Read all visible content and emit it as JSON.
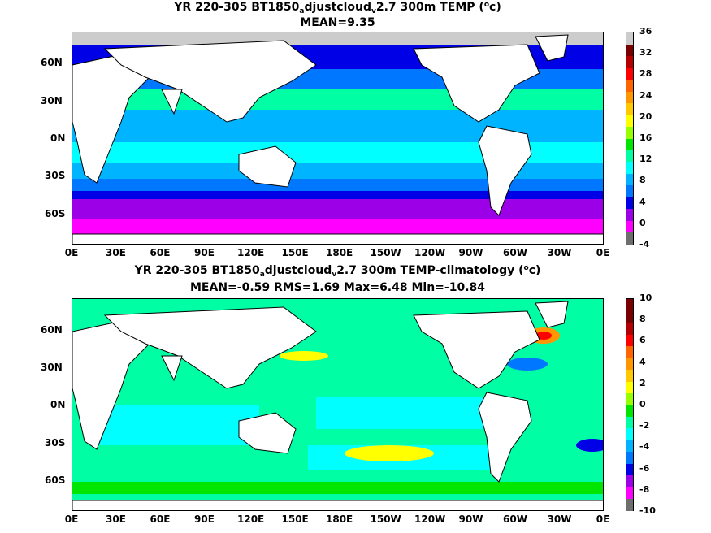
{
  "panels": [
    {
      "title_a": "YR 220-305 BT1850",
      "title_sub": "a",
      "title_b": "djustcloud",
      "title_sub2": "v",
      "title_c": "2.7 300m TEMP (",
      "title_sup": "o",
      "title_d": "c)",
      "stats": "MEAN=9.35",
      "colorbar_ticks": [
        "36",
        "32",
        "28",
        "24",
        "20",
        "16",
        "12",
        "8",
        "4",
        "0",
        "-4"
      ],
      "colorbar_colors": [
        "#6e6e6e",
        "#ff00ff",
        "#9c00e6",
        "#0000e6",
        "#0077ff",
        "#00b4ff",
        "#00ffff",
        "#00ffa5",
        "#00e600",
        "#96ff00",
        "#ffff00",
        "#ffc800",
        "#ff9600",
        "#ff6400",
        "#ff0000",
        "#b40000",
        "#780000",
        "#cccccc"
      ]
    },
    {
      "title_a": "YR 220-305 BT1850",
      "title_sub": "a",
      "title_b": "djustcloud",
      "title_sub2": "v",
      "title_c": "2.7 300m TEMP-climatology (",
      "title_sup": "o",
      "title_d": "c)",
      "stats": "MEAN=-0.59   RMS=1.69   Max=6.48   Min=-10.84",
      "colorbar_ticks": [
        "10",
        "8",
        "6",
        "4",
        "2",
        "0",
        "-2",
        "-4",
        "-6",
        "-8",
        "-10"
      ],
      "colorbar_colors": [
        "#6e6e6e",
        "#ff00ff",
        "#9c00e6",
        "#0000e6",
        "#0077ff",
        "#00b4ff",
        "#00ffff",
        "#00ffa5",
        "#00e600",
        "#96ff00",
        "#ffff00",
        "#ffc800",
        "#ff9600",
        "#ff6400",
        "#ff0000",
        "#b40000",
        "#780000",
        "#780000"
      ]
    }
  ],
  "lon_labels": [
    "0E",
    "30E",
    "60E",
    "90E",
    "120E",
    "150E",
    "180E",
    "150W",
    "120W",
    "90W",
    "60W",
    "30W",
    "0E"
  ],
  "lat_labels": [
    "60N",
    "30N",
    "0N",
    "30S",
    "60S"
  ]
}
